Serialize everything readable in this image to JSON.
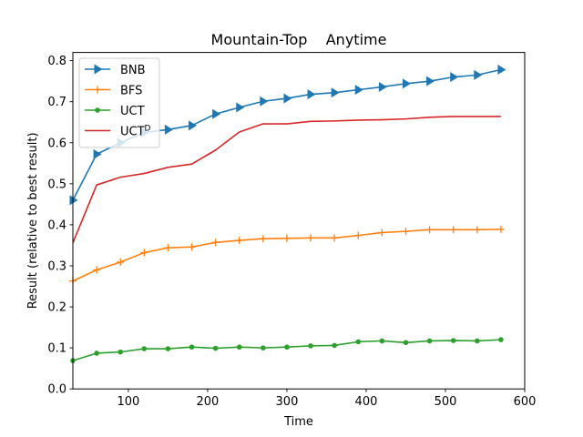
{
  "chart_data": {
    "type": "line",
    "title": "Mountain-Top    Anytime",
    "xlabel": "Time",
    "ylabel": "Result (relative to best result)",
    "xlim": [
      30,
      600
    ],
    "ylim": [
      0.0,
      0.82
    ],
    "xticks": [
      100,
      200,
      300,
      400,
      500,
      600
    ],
    "xtick_labels": [
      "100",
      "200",
      "300",
      "400",
      "500",
      "600"
    ],
    "yticks": [
      0.0,
      0.1,
      0.2,
      0.3,
      0.4,
      0.5,
      0.6,
      0.7,
      0.8
    ],
    "ytick_labels": [
      "0.0",
      "0.1",
      "0.2",
      "0.3",
      "0.4",
      "0.5",
      "0.6",
      "0.7",
      "0.8"
    ],
    "grid": false,
    "legend_position": "top-left",
    "x": [
      30,
      60,
      90,
      120,
      150,
      180,
      210,
      240,
      270,
      300,
      330,
      360,
      390,
      420,
      450,
      480,
      510,
      540,
      570
    ],
    "series": [
      {
        "name": "BNB",
        "legend_main": "BNB",
        "legend_sup": "",
        "color": "#1f77b4",
        "marker": "triangle-right",
        "values": [
          0.46,
          0.572,
          0.6,
          0.625,
          0.632,
          0.642,
          0.67,
          0.686,
          0.701,
          0.708,
          0.718,
          0.722,
          0.729,
          0.736,
          0.744,
          0.75,
          0.76,
          0.765,
          0.778
        ]
      },
      {
        "name": "BFS",
        "legend_main": "BFS",
        "legend_sup": "",
        "color": "#ff7f0e",
        "marker": "plus",
        "values": [
          0.263,
          0.29,
          0.309,
          0.332,
          0.344,
          0.346,
          0.357,
          0.362,
          0.366,
          0.367,
          0.368,
          0.368,
          0.374,
          0.381,
          0.384,
          0.388,
          0.388,
          0.388,
          0.389
        ]
      },
      {
        "name": "UCT",
        "legend_main": "UCT",
        "legend_sup": "",
        "color": "#2ca02c",
        "marker": "dot",
        "values": [
          0.069,
          0.087,
          0.09,
          0.098,
          0.098,
          0.102,
          0.099,
          0.102,
          0.1,
          0.102,
          0.105,
          0.106,
          0.115,
          0.117,
          0.113,
          0.117,
          0.118,
          0.117,
          0.12
        ]
      },
      {
        "name": "UCT^D",
        "legend_main": "UCT",
        "legend_sup": "D",
        "color": "#d62728",
        "marker": "none",
        "values": [
          0.356,
          0.497,
          0.516,
          0.525,
          0.54,
          0.548,
          0.582,
          0.626,
          0.646,
          0.646,
          0.652,
          0.653,
          0.655,
          0.656,
          0.658,
          0.662,
          0.664,
          0.664,
          0.664
        ]
      }
    ]
  }
}
